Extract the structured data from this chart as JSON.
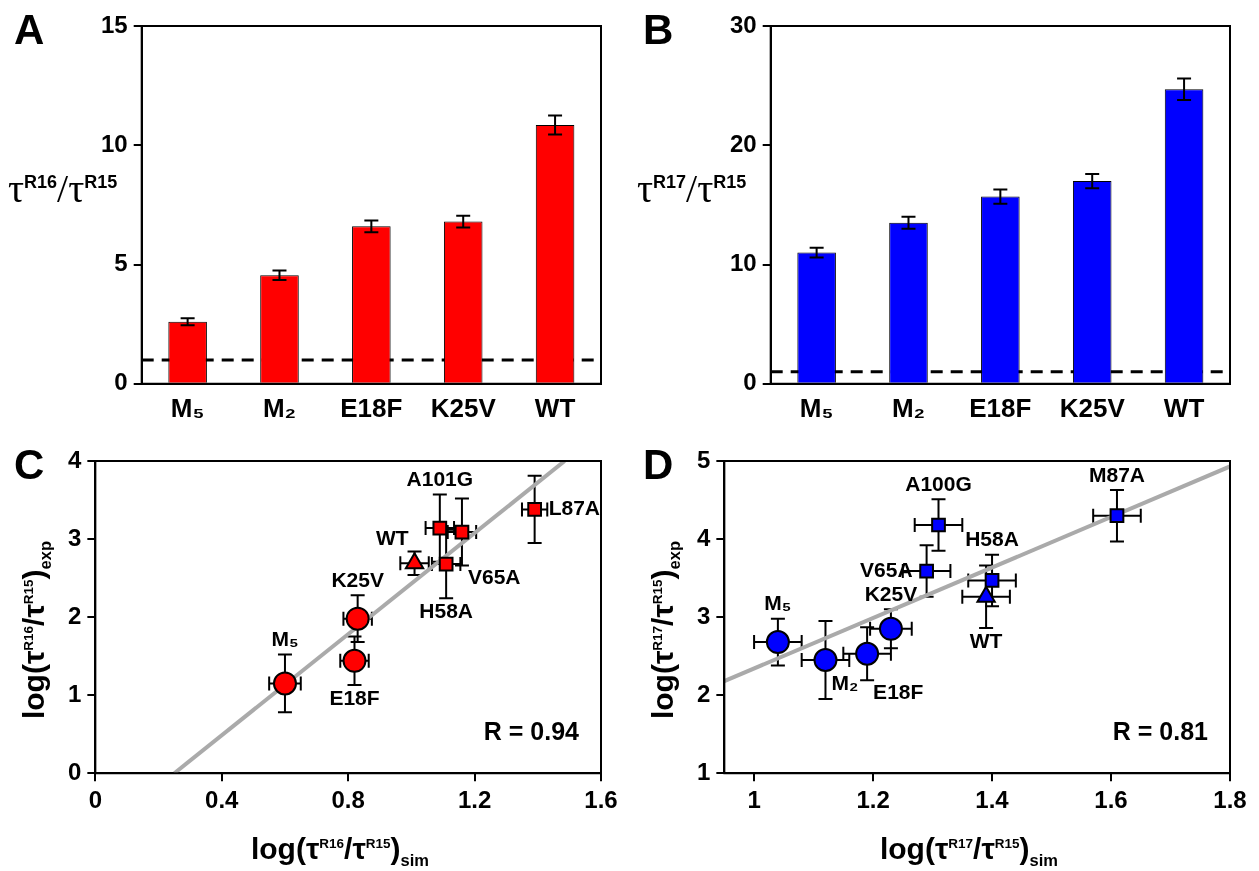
{
  "chart_data": [
    {
      "type": "bar",
      "title": "A",
      "ylabel": "τ$^{R16}$/τ$^{R15}$",
      "categories": [
        "M₅",
        "M₂",
        "E18F",
        "K25V",
        "WT"
      ],
      "values": [
        2.6,
        4.55,
        6.6,
        6.8,
        10.85
      ],
      "errors": [
        0.15,
        0.2,
        0.25,
        0.25,
        0.4
      ],
      "color": "#ff0000",
      "ylim": [
        0,
        15
      ],
      "yticks": [
        0,
        5,
        10,
        15
      ],
      "ref_lines": [
        {
          "axis": "y",
          "value": 1,
          "color": "#000000",
          "line_style": "dashed"
        }
      ]
    },
    {
      "type": "bar",
      "title": "B",
      "ylabel": "τ$^{R17}$/τ$^{R15}$",
      "categories": [
        "M₅",
        "M₂",
        "E18F",
        "K25V",
        "WT"
      ],
      "values": [
        11.0,
        13.5,
        15.7,
        17.0,
        24.7
      ],
      "errors": [
        0.4,
        0.5,
        0.6,
        0.6,
        0.9
      ],
      "color": "#0000ff",
      "ylim": [
        0,
        30
      ],
      "yticks": [
        0,
        10,
        20,
        30
      ],
      "ref_lines": [
        {
          "axis": "y",
          "value": 1,
          "color": "#000000",
          "line_style": "dashed"
        }
      ]
    },
    {
      "type": "scatter",
      "title": "C",
      "xlabel": "log(τ$^{R16}$/τ$^{R15}$)$_{sim}$",
      "ylabel": "log(τ$^{R16}$/τ$^{R15}$)$_{exp}$",
      "xlim": [
        0,
        1.6
      ],
      "xticks": [
        0,
        0.4,
        0.8,
        1.2,
        1.6
      ],
      "ylim": [
        0,
        4
      ],
      "yticks": [
        0,
        1,
        2,
        3,
        4
      ],
      "series": [
        {
          "type": "line",
          "color": "#aaaaaa",
          "x": [
            0.25,
            1.485
          ],
          "values": [
            0,
            4
          ]
        },
        {
          "type": "scatter",
          "marker": "circle",
          "color": "#ff0000",
          "x": [
            0.6,
            0.82,
            0.83
          ],
          "values": [
            1.15,
            1.44,
            1.98
          ],
          "errors": [
            0.37,
            0.31,
            0.3
          ],
          "xerrors": [
            0.05,
            0.045,
            0.045
          ]
        },
        {
          "type": "scatter",
          "marker": "triangle",
          "color": "#ff0000",
          "x": [
            1.01
          ],
          "values": [
            2.69
          ],
          "errors": [
            0.15
          ],
          "xerrors": [
            0.045
          ]
        },
        {
          "type": "scatter",
          "marker": "square",
          "color": "#ff0000",
          "x": [
            1.11,
            1.09,
            1.16,
            1.39
          ],
          "values": [
            2.68,
            3.14,
            3.09,
            3.38
          ],
          "errors": [
            0.44,
            0.43,
            0.43,
            0.43
          ],
          "xerrors": [
            0.045,
            0.045,
            0.045,
            0.04
          ]
        }
      ],
      "annotations": [
        {
          "text": "L87A",
          "x": 1.39,
          "y": 3.38
        },
        {
          "text": "A101G",
          "x": 1.09,
          "y": 3.14
        },
        {
          "text": "V65A",
          "x": 1.16,
          "y": 3.09
        },
        {
          "text": "WT",
          "x": 1.01,
          "y": 2.69
        },
        {
          "text": "H58A",
          "x": 1.11,
          "y": 2.68
        },
        {
          "text": "K25V",
          "x": 0.83,
          "y": 1.98
        },
        {
          "text": "M₅",
          "x": 0.6,
          "y": 1.15
        },
        {
          "text": "E18F",
          "x": 0.82,
          "y": 1.44
        },
        "R = 0.94"
      ]
    },
    {
      "type": "scatter",
      "title": "D",
      "xlabel": "log(τ$^{R17}$/τ$^{R15}$)$_{sim}$",
      "ylabel": "log(τ$^{R17}$/τ$^{R15}$)$_{exp}$",
      "xlim": [
        0.95,
        1.8
      ],
      "xticks": [
        1,
        1.2,
        1.4,
        1.6,
        1.8
      ],
      "ylim": [
        1,
        5
      ],
      "yticks": [
        1,
        2,
        3,
        4,
        5
      ],
      "series": [
        {
          "type": "line",
          "color": "#aaaaaa",
          "x": [
            0.95,
            1.8
          ],
          "values": [
            2.18,
            4.93
          ]
        },
        {
          "type": "scatter",
          "marker": "circle",
          "color": "#0000ff",
          "x": [
            1.04,
            1.12,
            1.19,
            1.23
          ],
          "values": [
            2.68,
            2.45,
            2.53,
            2.85
          ],
          "errors": [
            0.3,
            0.5,
            0.34,
            0.25
          ],
          "xerrors": [
            0.04,
            0.04,
            0.04,
            0.035
          ]
        },
        {
          "type": "scatter",
          "marker": "triangle",
          "color": "#0000ff",
          "x": [
            1.39
          ],
          "values": [
            3.26
          ],
          "errors": [
            0.4
          ],
          "xerrors": [
            0.04
          ]
        },
        {
          "type": "scatter",
          "marker": "square",
          "color": "#0000ff",
          "x": [
            1.29,
            1.31,
            1.4,
            1.61
          ],
          "values": [
            3.59,
            4.18,
            3.47,
            4.3
          ],
          "errors": [
            0.33,
            0.33,
            0.33,
            0.33
          ],
          "xerrors": [
            0.04,
            0.04,
            0.04,
            0.04
          ]
        }
      ],
      "annotations": [
        {
          "text": "A100G",
          "x": 1.31,
          "y": 4.18
        },
        {
          "text": "V65A",
          "x": 1.29,
          "y": 3.59
        },
        {
          "text": "H58A",
          "x": 1.4,
          "y": 3.47
        },
        {
          "text": "M87A",
          "x": 1.61,
          "y": 4.3
        },
        {
          "text": "M₅",
          "x": 1.04,
          "y": 2.68
        },
        {
          "text": "M₂",
          "x": 1.12,
          "y": 2.45
        },
        {
          "text": "K25V",
          "x": 1.23,
          "y": 2.85
        },
        {
          "text": "E18F",
          "x": 1.19,
          "y": 2.53
        },
        {
          "text": "WT",
          "x": 1.39,
          "y": 3.26
        },
        "R = 0.81"
      ]
    }
  ]
}
